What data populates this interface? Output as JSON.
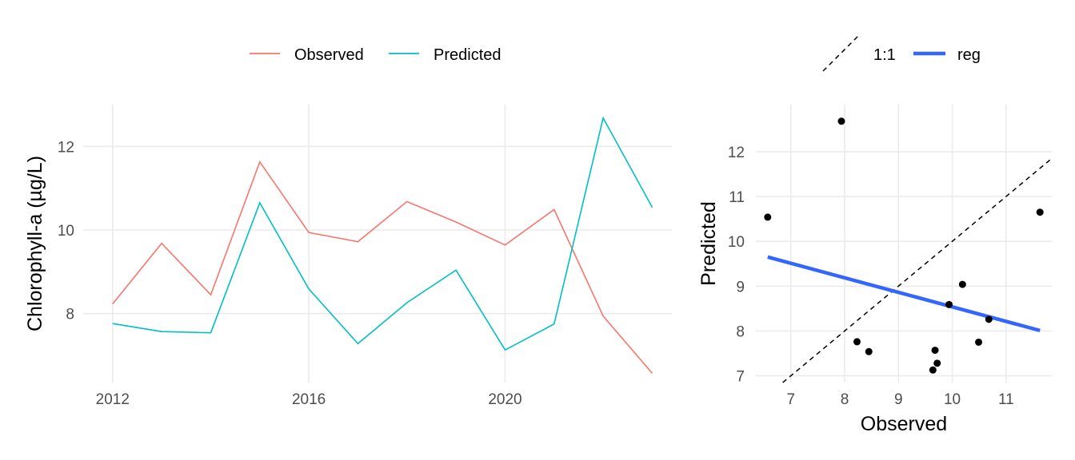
{
  "chart_data": [
    {
      "type": "line",
      "title": "",
      "xlabel": "",
      "ylabel": "Chlorophyll-a (µg/L)",
      "x": [
        2012,
        2013,
        2014,
        2015,
        2016,
        2017,
        2018,
        2019,
        2020,
        2021,
        2022,
        2023
      ],
      "x_ticks": [
        2012,
        2016,
        2020
      ],
      "y_ticks": [
        8,
        10,
        12
      ],
      "xlim": [
        2011.4,
        2023.4
      ],
      "ylim": [
        6.35,
        13.0
      ],
      "grid": true,
      "legend_position": "top",
      "series": [
        {
          "name": "Observed",
          "color": "#F8766D",
          "values": [
            8.23,
            9.68,
            8.45,
            11.63,
            9.94,
            9.72,
            10.68,
            10.19,
            9.64,
            10.49,
            7.94,
            6.57
          ]
        },
        {
          "name": "Predicted",
          "color": "#00BFC4",
          "values": [
            7.76,
            7.57,
            7.54,
            10.65,
            8.59,
            7.28,
            8.26,
            9.04,
            7.13,
            7.75,
            12.68,
            10.54
          ]
        }
      ]
    },
    {
      "type": "scatter",
      "title": "",
      "xlabel": "Observed",
      "ylabel": "Predicted",
      "x_ticks": [
        7,
        8,
        9,
        10,
        11
      ],
      "y_ticks": [
        7,
        8,
        9,
        10,
        11,
        12
      ],
      "xlim": [
        6.35,
        11.85
      ],
      "ylim": [
        6.85,
        13.05
      ],
      "grid": true,
      "legend_position": "top",
      "legend": [
        {
          "label": "1:1",
          "style": "dashed",
          "color": "#000000"
        },
        {
          "label": "reg",
          "style": "solid-thick",
          "color": "#3366FF"
        }
      ],
      "points": [
        {
          "x": 8.23,
          "y": 7.76
        },
        {
          "x": 9.68,
          "y": 7.57
        },
        {
          "x": 8.45,
          "y": 7.54
        },
        {
          "x": 11.63,
          "y": 10.65
        },
        {
          "x": 9.94,
          "y": 8.59
        },
        {
          "x": 9.72,
          "y": 7.28
        },
        {
          "x": 10.68,
          "y": 8.26
        },
        {
          "x": 10.19,
          "y": 9.04
        },
        {
          "x": 9.64,
          "y": 7.13
        },
        {
          "x": 10.49,
          "y": 7.75
        },
        {
          "x": 7.94,
          "y": 12.68
        },
        {
          "x": 6.57,
          "y": 10.54
        }
      ],
      "point_color": "#000000",
      "identity_line": {
        "from": [
          6.35,
          6.35
        ],
        "to": [
          11.85,
          11.85
        ],
        "color": "#000000"
      },
      "regression_line": {
        "from": [
          6.57,
          9.65
        ],
        "to": [
          11.63,
          8.01
        ],
        "color": "#3366FF"
      }
    }
  ]
}
